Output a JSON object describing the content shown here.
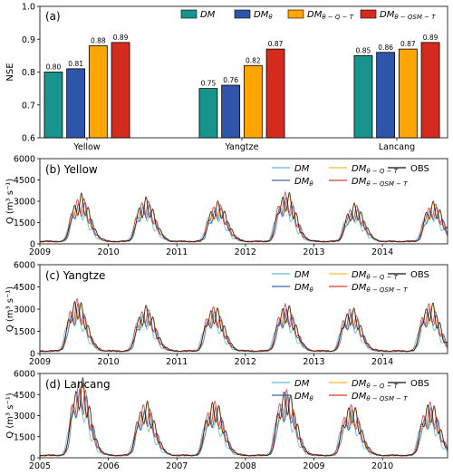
{
  "chart_data": [
    {
      "type": "bar",
      "panel_label": "(a)",
      "ylabel": "NSE",
      "ylim": [
        0.6,
        1.0
      ],
      "yticks": [
        "0.6",
        "0.7",
        "0.8",
        "0.9",
        "1.0"
      ],
      "categories": [
        "Yellow",
        "Yangtze",
        "Lancang"
      ],
      "legend_position": "top",
      "series": [
        {
          "name": "DM",
          "sub": "",
          "color": "#17958c",
          "values": [
            0.8,
            0.75,
            0.85
          ],
          "labels": [
            "0.80",
            "0.75",
            "0.85"
          ]
        },
        {
          "name": "DM",
          "sub": "θ",
          "color": "#2e55a9",
          "values": [
            0.81,
            0.76,
            0.86
          ],
          "labels": [
            "0.81",
            "0.76",
            "0.86"
          ]
        },
        {
          "name": "DM",
          "sub": "θ − Q − T",
          "color": "#ffa500",
          "values": [
            0.88,
            0.82,
            0.87
          ],
          "labels": [
            "0.88",
            "0.82",
            "0.87"
          ]
        },
        {
          "name": "DM",
          "sub": "θ − QSM − T",
          "color": "#d42b1e",
          "values": [
            0.89,
            0.87,
            0.89
          ],
          "labels": [
            "0.89",
            "0.87",
            "0.89"
          ]
        }
      ]
    },
    {
      "type": "line",
      "panel_label": "(b) Yellow",
      "ylabel": "Q (m³ s⁻¹)",
      "ylim": [
        0,
        6000
      ],
      "yticks": [
        "0",
        "1500",
        "3000",
        "4500",
        "6000"
      ],
      "xlim": [
        2009.0,
        2014.95
      ],
      "xticks": [
        "2009",
        "2010",
        "2011",
        "2012",
        "2013",
        "2014"
      ],
      "legend_position": "upper right",
      "x_start": 2009.0,
      "x_end": 2014.95,
      "peaks": [
        [
          2009.6,
          2700
        ],
        [
          2010.55,
          2500
        ],
        [
          2011.6,
          2300
        ],
        [
          2012.6,
          2900
        ],
        [
          2013.6,
          2150
        ],
        [
          2014.75,
          2300
        ]
      ],
      "series": [
        {
          "name": "DM",
          "sub": "",
          "color": "#5fb8d8"
        },
        {
          "name": "DM",
          "sub": "θ",
          "color": "#3a63b0"
        },
        {
          "name": "DM",
          "sub": "θ − Q − T",
          "color": "#ffb833"
        },
        {
          "name": "DM",
          "sub": "θ − QSM − T",
          "color": "#d93a30"
        },
        {
          "name": "OBS",
          "sub": "",
          "color": "#111111"
        }
      ]
    },
    {
      "type": "line",
      "panel_label": "(c) Yangtze",
      "ylabel": "Q (m³ s⁻¹)",
      "ylim": [
        0,
        6000
      ],
      "yticks": [
        "0",
        "1500",
        "3000",
        "4500",
        "6000"
      ],
      "xlim": [
        2009.0,
        2014.95
      ],
      "xticks": [
        "2009",
        "2010",
        "2011",
        "2012",
        "2013",
        "2014"
      ],
      "legend_position": "upper right",
      "x_start": 2009.0,
      "x_end": 2014.95,
      "peaks": [
        [
          2009.55,
          2900
        ],
        [
          2010.55,
          2500
        ],
        [
          2011.55,
          2500
        ],
        [
          2012.6,
          2600
        ],
        [
          2013.55,
          2400
        ],
        [
          2014.7,
          2700
        ]
      ],
      "series": [
        {
          "name": "DM",
          "sub": "",
          "color": "#5fb8d8"
        },
        {
          "name": "DM",
          "sub": "θ",
          "color": "#3a63b0"
        },
        {
          "name": "DM",
          "sub": "θ − Q − T",
          "color": "#ffb833"
        },
        {
          "name": "DM",
          "sub": "θ − QSM − T",
          "color": "#d93a30"
        },
        {
          "name": "OBS",
          "sub": "",
          "color": "#111111"
        }
      ]
    },
    {
      "type": "line",
      "panel_label": "(d) Lancang",
      "ylabel": "Q (m³ s⁻¹)",
      "ylim": [
        0,
        6000
      ],
      "yticks": [
        "0",
        "1500",
        "3000",
        "4500",
        "6000"
      ],
      "xlim": [
        2005.0,
        2010.95
      ],
      "xticks": [
        "2005",
        "2006",
        "2007",
        "2008",
        "2009",
        "2010"
      ],
      "legend_position": "upper right",
      "x_start": 2005.0,
      "x_end": 2010.95,
      "peaks": [
        [
          2005.6,
          4500
        ],
        [
          2006.55,
          3100
        ],
        [
          2007.55,
          3200
        ],
        [
          2008.6,
          3900
        ],
        [
          2009.55,
          3000
        ],
        [
          2010.7,
          3100
        ]
      ],
      "series": [
        {
          "name": "DM",
          "sub": "",
          "color": "#5fb8d8"
        },
        {
          "name": "DM",
          "sub": "θ",
          "color": "#3a63b0"
        },
        {
          "name": "DM",
          "sub": "θ − Q − T",
          "color": "#ffb833"
        },
        {
          "name": "DM",
          "sub": "θ − QSM − T",
          "color": "#d93a30"
        },
        {
          "name": "OBS",
          "sub": "",
          "color": "#111111"
        }
      ]
    }
  ]
}
